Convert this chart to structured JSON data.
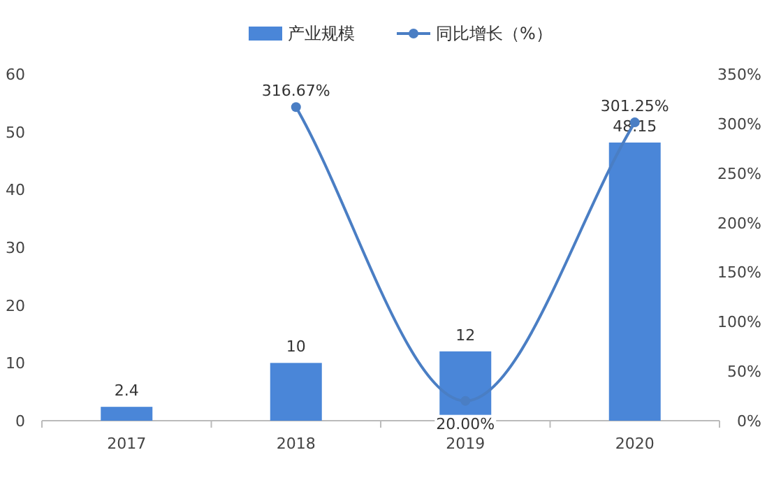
{
  "chart_data": {
    "type": "bar",
    "categories": [
      "2017",
      "2018",
      "2019",
      "2020"
    ],
    "series": [
      {
        "name": "产业规模",
        "color": "#4a86d8",
        "values": [
          2.4,
          10,
          12,
          48.15
        ],
        "value_labels": [
          "2.4",
          "10",
          "12",
          "48.15"
        ]
      },
      {
        "name": "同比增长（%）",
        "type": "line",
        "axis": "y2",
        "color": "#4a7ec4",
        "marker": "circle",
        "values": [
          null,
          316.67,
          20.0,
          301.25
        ],
        "value_labels": [
          null,
          "316.67%",
          "20.00%",
          "301.25%"
        ]
      }
    ],
    "ylim": [
      0,
      60
    ],
    "yticks": [
      0,
      10,
      20,
      30,
      40,
      50,
      60
    ],
    "y2lim": [
      0,
      350
    ],
    "y2ticks": [
      {
        "value": 0,
        "label": "0%"
      },
      {
        "value": 50,
        "label": "50%"
      },
      {
        "value": 100,
        "label": "100%"
      },
      {
        "value": 150,
        "label": "150%"
      },
      {
        "value": 200,
        "label": "200%"
      },
      {
        "value": 250,
        "label": "250%"
      },
      {
        "value": 300,
        "label": "300%"
      },
      {
        "value": 350,
        "label": "350%"
      }
    ],
    "legend": "top"
  }
}
